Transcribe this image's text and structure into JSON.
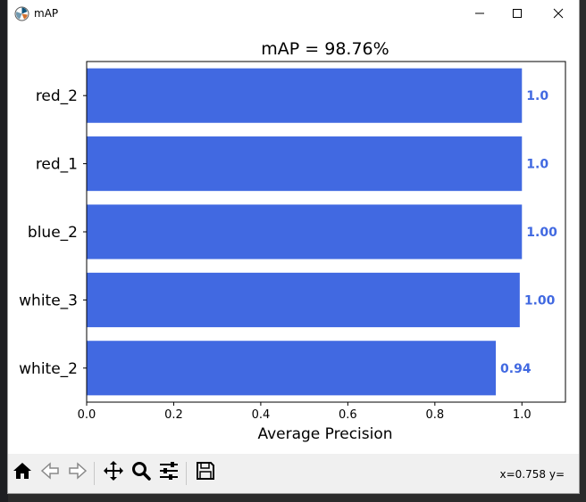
{
  "window": {
    "title": "mAP",
    "icons": {
      "app": "matplotlib-icon",
      "minimize": "minimize-icon",
      "maximize": "maximize-icon",
      "close": "close-icon"
    }
  },
  "toolbar": {
    "buttons": [
      "home-icon",
      "back-icon",
      "forward-icon",
      "pan-icon",
      "zoom-icon",
      "configure-subplots-icon",
      "save-icon"
    ],
    "coords_text": "x=0.758 y="
  },
  "colors": {
    "bar": "#4169e1",
    "label": "#4169e1"
  },
  "chart_data": {
    "type": "bar",
    "orientation": "horizontal",
    "title": "mAP = 98.76%",
    "xlabel": "Average Precision",
    "ylabel": "",
    "xlim": [
      0,
      1.1
    ],
    "xticks": [
      "0.0",
      "0.2",
      "0.4",
      "0.6",
      "0.8",
      "1.0"
    ],
    "grid": false,
    "categories": [
      "red_2",
      "red_1",
      "blue_2",
      "white_3",
      "white_2"
    ],
    "values": [
      1.0,
      1.0,
      1.0,
      0.995,
      0.94
    ],
    "data_labels": [
      "1.0",
      "1.0",
      "1.00",
      "1.00",
      "0.94"
    ]
  }
}
